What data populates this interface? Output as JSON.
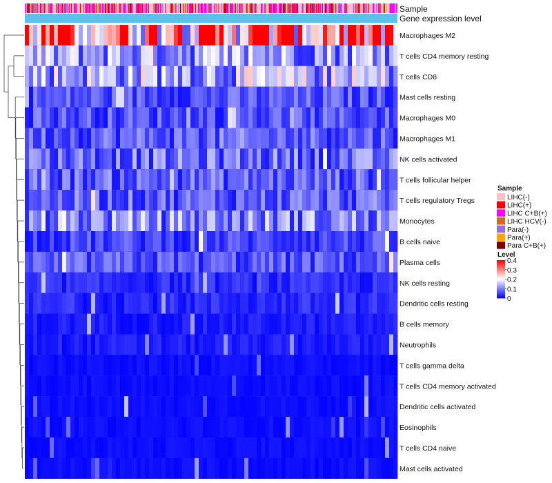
{
  "chart_data": {
    "type": "heatmap",
    "title": "",
    "annotation_tracks": [
      "Sample",
      "Gene expression level"
    ],
    "rows": [
      "Macrophages M2",
      "T cells CD4 memory resting",
      "T cells CD8",
      "Mast cells resting",
      "Macrophages M0",
      "Macrophages M1",
      "NK cells activated",
      "T cells follicular helper",
      "T cells regulatory  Tregs",
      "Monocytes",
      "B cells naive",
      "Plasma cells",
      "NK cells resting",
      "Dendritic cells resting",
      "B cells memory",
      "Neutrophils",
      "T cells gamma delta",
      "T cells CD4 memory activated",
      "Dendritic cells activated",
      "Eosinophils",
      "T cells CD4 naive",
      "Mast cells activated"
    ],
    "row_mean_level": [
      0.3,
      0.12,
      0.13,
      0.06,
      0.06,
      0.07,
      0.08,
      0.07,
      0.07,
      0.1,
      0.05,
      0.06,
      0.03,
      0.03,
      0.02,
      0.02,
      0.01,
      0.01,
      0.01,
      0.01,
      0.01,
      0.01
    ],
    "n_samples": 420,
    "color_scale": {
      "name": "Level",
      "min": 0,
      "max": 0.4,
      "ticks": [
        "0.4",
        "0.3",
        "0.2",
        "0.1",
        "0"
      ],
      "tick_values": [
        0.4,
        0.3,
        0.2,
        0.1,
        0
      ],
      "colors": [
        "#0000ff",
        "#ffffff",
        "#ff0000"
      ]
    },
    "sample_legend": {
      "title": "Sample",
      "entries": [
        {
          "label": "LIHC(-)",
          "color": "#ffc0cb"
        },
        {
          "label": "LIHC(+)",
          "color": "#ff0000"
        },
        {
          "label": "LIHC C+B(+)",
          "color": "#ff00ff"
        },
        {
          "label": "LIHC HCV(-)",
          "color": "#d2691e"
        },
        {
          "label": "Para(-)",
          "color": "#9370db"
        },
        {
          "label": "Para(+)",
          "color": "#ffa500"
        },
        {
          "label": "Para C+B(+)",
          "color": "#800000"
        }
      ]
    },
    "gene_expression_color": "#5bc0ea",
    "dendrogram": "hierarchical clustering of rows (left)"
  }
}
